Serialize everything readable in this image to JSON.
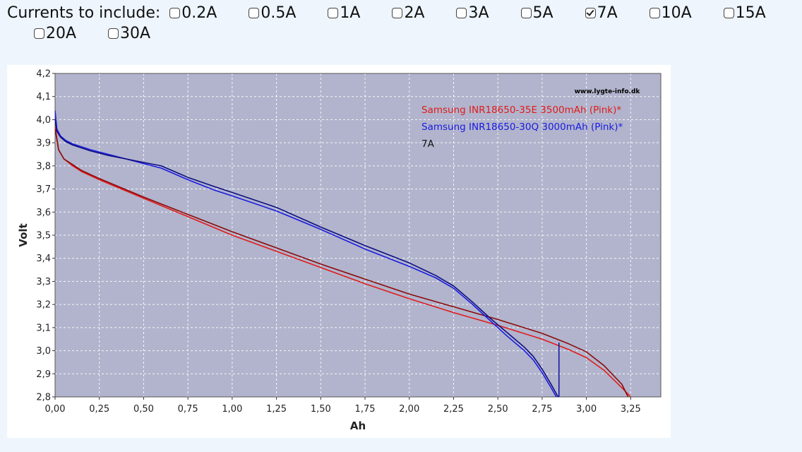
{
  "controls": {
    "label": "Currents to include:",
    "options": [
      {
        "label": "0.2A",
        "checked": false
      },
      {
        "label": "0.5A",
        "checked": false
      },
      {
        "label": "1A",
        "checked": false
      },
      {
        "label": "2A",
        "checked": false
      },
      {
        "label": "3A",
        "checked": false
      },
      {
        "label": "5A",
        "checked": false
      },
      {
        "label": "7A",
        "checked": true
      },
      {
        "label": "10A",
        "checked": false
      },
      {
        "label": "15A",
        "checked": false
      },
      {
        "label": "20A",
        "checked": false
      },
      {
        "label": "30A",
        "checked": false
      }
    ]
  },
  "colors": {
    "plot_bg": "#b1b4cc",
    "series_red": "#e01b1b",
    "series_dark_red": "#8b0a0a",
    "series_blue": "#1a1ae0",
    "series_dark_blue": "#0d0d80"
  },
  "chart_data": {
    "type": "line",
    "title": "",
    "xlabel": "Ah",
    "ylabel": "Volt",
    "xlim": [
      0,
      3.42
    ],
    "ylim": [
      2.8,
      4.2
    ],
    "x_ticks": [
      0,
      0.25,
      0.5,
      0.75,
      1.0,
      1.25,
      1.5,
      1.75,
      2.0,
      2.25,
      2.5,
      2.75,
      3.0,
      3.25
    ],
    "x_tick_labels": [
      "0,00",
      "0,25",
      "0,50",
      "0,75",
      "1,00",
      "1,25",
      "1,50",
      "1,75",
      "2,00",
      "2,25",
      "2,50",
      "2,75",
      "3,00",
      "3,25"
    ],
    "y_ticks": [
      2.8,
      2.9,
      3.0,
      3.1,
      3.2,
      3.3,
      3.4,
      3.5,
      3.6,
      3.7,
      3.8,
      3.9,
      4.0,
      4.1,
      4.2
    ],
    "y_tick_labels": [
      "2,8",
      "2,9",
      "3,0",
      "3,1",
      "3,2",
      "3,3",
      "3,4",
      "3,5",
      "3,6",
      "3,7",
      "3,8",
      "3,9",
      "4,0",
      "4,1",
      "4,2"
    ],
    "grid": true,
    "watermark": "www.lygte-info.dk",
    "legend_position": "top-right",
    "legend": [
      {
        "text": "Samsung INR18650-35E 3500mAh (Pink)*",
        "color": "#e01b1b"
      },
      {
        "text": "Samsung INR18650-30Q 3000mAh (Pink)*",
        "color": "#1a1ae0"
      },
      {
        "text": "7A",
        "color": "#111111"
      }
    ],
    "series": [
      {
        "color": "#e01b1b",
        "points": [
          [
            0,
            3.97
          ],
          [
            0.02,
            3.87
          ],
          [
            0.05,
            3.83
          ],
          [
            0.1,
            3.8
          ],
          [
            0.15,
            3.775
          ],
          [
            0.25,
            3.74
          ],
          [
            0.5,
            3.66
          ],
          [
            0.75,
            3.58
          ],
          [
            1.0,
            3.5
          ],
          [
            1.25,
            3.43
          ],
          [
            1.5,
            3.36
          ],
          [
            1.75,
            3.29
          ],
          [
            2.0,
            3.225
          ],
          [
            2.25,
            3.165
          ],
          [
            2.5,
            3.11
          ],
          [
            2.75,
            3.05
          ],
          [
            2.9,
            3.005
          ],
          [
            3.0,
            2.97
          ],
          [
            3.1,
            2.915
          ],
          [
            3.2,
            2.84
          ],
          [
            3.25,
            2.8
          ]
        ]
      },
      {
        "color": "#8b0a0a",
        "points": [
          [
            0,
            3.96
          ],
          [
            0.02,
            3.87
          ],
          [
            0.05,
            3.83
          ],
          [
            0.1,
            3.805
          ],
          [
            0.15,
            3.78
          ],
          [
            0.25,
            3.745
          ],
          [
            0.5,
            3.665
          ],
          [
            0.75,
            3.59
          ],
          [
            1.0,
            3.515
          ],
          [
            1.25,
            3.445
          ],
          [
            1.5,
            3.375
          ],
          [
            1.75,
            3.31
          ],
          [
            2.0,
            3.245
          ],
          [
            2.25,
            3.19
          ],
          [
            2.5,
            3.135
          ],
          [
            2.75,
            3.075
          ],
          [
            2.9,
            3.03
          ],
          [
            3.0,
            2.995
          ],
          [
            3.1,
            2.935
          ],
          [
            3.2,
            2.855
          ],
          [
            3.235,
            2.8
          ]
        ]
      },
      {
        "color": "#1a1ae0",
        "points": [
          [
            0,
            4.04
          ],
          [
            0.01,
            3.96
          ],
          [
            0.03,
            3.93
          ],
          [
            0.06,
            3.91
          ],
          [
            0.1,
            3.895
          ],
          [
            0.2,
            3.87
          ],
          [
            0.3,
            3.85
          ],
          [
            0.4,
            3.83
          ],
          [
            0.5,
            3.81
          ],
          [
            0.6,
            3.79
          ],
          [
            0.75,
            3.74
          ],
          [
            0.9,
            3.695
          ],
          [
            1.0,
            3.67
          ],
          [
            1.25,
            3.605
          ],
          [
            1.5,
            3.525
          ],
          [
            1.75,
            3.44
          ],
          [
            2.0,
            3.365
          ],
          [
            2.15,
            3.315
          ],
          [
            2.25,
            3.27
          ],
          [
            2.35,
            3.205
          ],
          [
            2.45,
            3.135
          ],
          [
            2.55,
            3.065
          ],
          [
            2.65,
            3.0
          ],
          [
            2.7,
            2.96
          ],
          [
            2.75,
            2.905
          ],
          [
            2.8,
            2.84
          ],
          [
            2.83,
            2.8
          ]
        ]
      },
      {
        "color": "#0d0d80",
        "points": [
          [
            0,
            4.0
          ],
          [
            0.01,
            3.95
          ],
          [
            0.03,
            3.925
          ],
          [
            0.06,
            3.905
          ],
          [
            0.1,
            3.89
          ],
          [
            0.2,
            3.865
          ],
          [
            0.3,
            3.845
          ],
          [
            0.4,
            3.83
          ],
          [
            0.5,
            3.815
          ],
          [
            0.6,
            3.8
          ],
          [
            0.75,
            3.75
          ],
          [
            0.9,
            3.71
          ],
          [
            1.0,
            3.685
          ],
          [
            1.25,
            3.62
          ],
          [
            1.5,
            3.535
          ],
          [
            1.75,
            3.455
          ],
          [
            2.0,
            3.38
          ],
          [
            2.15,
            3.325
          ],
          [
            2.25,
            3.28
          ],
          [
            2.35,
            3.215
          ],
          [
            2.45,
            3.145
          ],
          [
            2.55,
            3.08
          ],
          [
            2.65,
            3.015
          ],
          [
            2.7,
            2.975
          ],
          [
            2.75,
            2.92
          ],
          [
            2.8,
            2.855
          ],
          [
            2.84,
            2.8
          ]
        ]
      }
    ],
    "annotations": [
      {
        "type": "vline",
        "x": 2.845,
        "y_from": 2.8,
        "y_to": 3.035,
        "color": "#1010a0"
      }
    ]
  }
}
